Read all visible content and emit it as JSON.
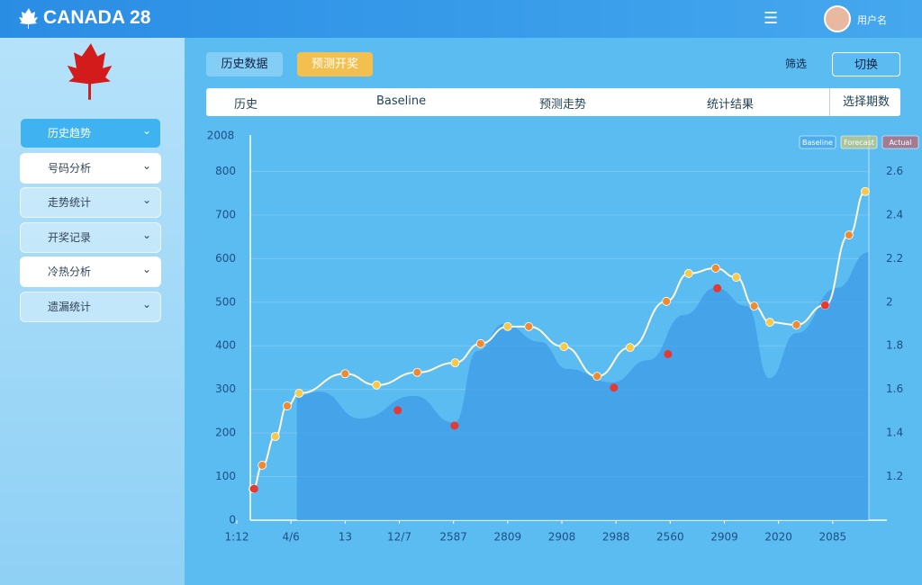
{
  "header": {
    "title": "CANADA 28",
    "user": "用户名"
  },
  "sidebar": {
    "items": [
      "历史趋势",
      "号码分析",
      "走势统计",
      "开奖记录",
      "冷热分析",
      "遗漏统计"
    ]
  },
  "toolbar": {
    "tab": "历史数据",
    "button": "预测开奖",
    "filter": "筛选",
    "switch": "切换"
  },
  "filter_bar": {
    "items": [
      "历史",
      "Baseline",
      "预测走势",
      "统计结果",
      "选择期数"
    ]
  },
  "chart_data": {
    "type": "line",
    "y_label": "2008",
    "xlim": [
      0,
      12
    ],
    "xticks": [
      {
        "value": 0,
        "label": "1:12"
      },
      {
        "value": 1,
        "label": "4/6"
      },
      {
        "value": 2,
        "label": "13"
      },
      {
        "value": 3,
        "label": "12/7"
      },
      {
        "value": 4,
        "label": "2587"
      },
      {
        "value": 5,
        "label": "2809"
      },
      {
        "value": 6,
        "label": "2908"
      },
      {
        "value": 7,
        "label": "2988"
      },
      {
        "value": 8,
        "label": "2560"
      },
      {
        "value": 9,
        "label": "2909"
      },
      {
        "value": 10,
        "label": "2020"
      },
      {
        "value": 11,
        "label": "2085"
      }
    ],
    "ylim": [
      0,
      900
    ],
    "yticks": [
      0,
      100,
      200,
      300,
      400,
      500,
      600,
      700,
      800
    ],
    "y2lim": [
      1.0,
      2.8
    ],
    "y2ticks": [
      1.2,
      1.4,
      1.6,
      1.8,
      2.0,
      2.2,
      2.4,
      2.6
    ],
    "grid": true,
    "series": [
      {
        "name": "Baseline",
        "type": "area",
        "color": "#3d9be6",
        "x": [
          1.11,
          1.53,
          2.28,
          3.27,
          4.02,
          4.44,
          4.93,
          5.6,
          6.1,
          6.93,
          7.59,
          8.26,
          8.84,
          9.42,
          9.83,
          10.33,
          11.08,
          11.66
        ],
        "values": [
          285,
          295,
          233,
          285,
          223,
          388,
          450,
          409,
          347,
          316,
          367,
          471,
          533,
          491,
          326,
          429,
          533,
          615
        ]
      },
      {
        "name": "Forecast",
        "type": "line",
        "color": "#f7c948",
        "x": [
          0.3,
          0.47,
          0.71,
          0.93,
          1.15,
          2.0,
          2.58,
          3.33,
          4.03,
          4.5,
          5.0,
          5.39,
          6.04,
          6.65,
          7.26,
          7.93,
          8.34,
          8.84,
          9.22,
          9.55,
          9.84,
          10.33,
          10.86,
          11.3,
          11.6
        ],
        "values": [
          72,
          126,
          192,
          262,
          291,
          336,
          310,
          339,
          361,
          405,
          444,
          444,
          398,
          330,
          396,
          502,
          566,
          578,
          557,
          491,
          454,
          448,
          493,
          654,
          754
        ]
      },
      {
        "name": "Actual",
        "type": "scatter",
        "color": "#e53935",
        "x": [
          0.32,
          2.97,
          4.02,
          6.96,
          7.96,
          8.87,
          10.86
        ],
        "values": [
          72,
          252,
          217,
          304,
          381,
          532,
          493
        ]
      }
    ]
  }
}
